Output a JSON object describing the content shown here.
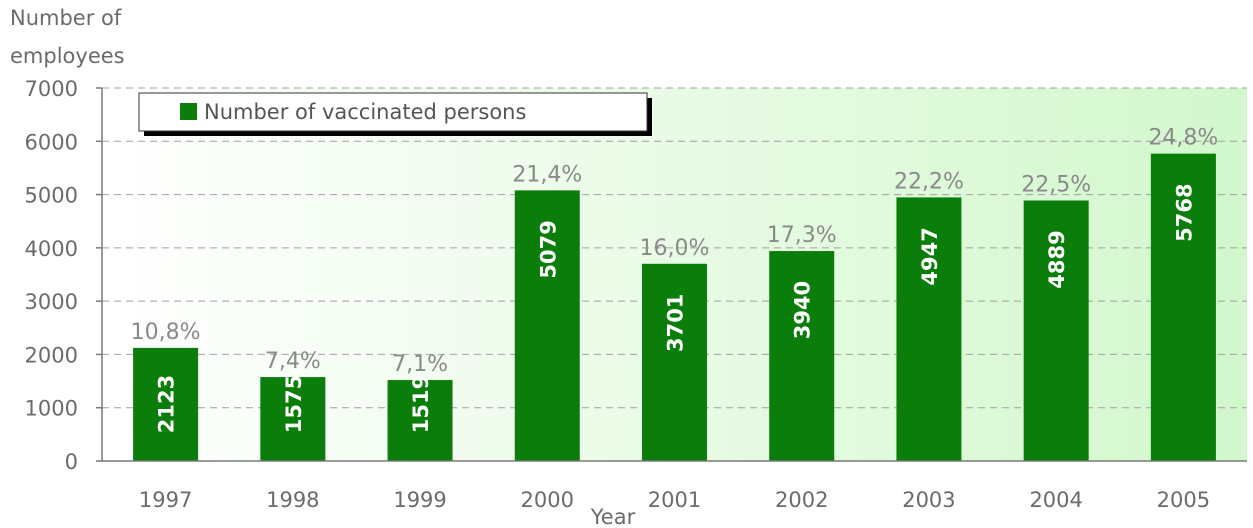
{
  "chart_data": {
    "type": "bar",
    "ylabel_lines": [
      "Number of",
      "employees"
    ],
    "xlabel": "Year",
    "categories": [
      "1997",
      "1998",
      "1999",
      "2000",
      "2001",
      "2002",
      "2003",
      "2004",
      "2005"
    ],
    "series": [
      {
        "name": "Number of vaccinated persons",
        "values": [
          2123,
          1575,
          1519,
          5079,
          3701,
          3940,
          4947,
          4889,
          5768
        ],
        "value_labels": [
          "2123",
          "1575",
          "1519",
          "5079",
          "3701",
          "3940",
          "4947",
          "4889",
          "5768"
        ]
      }
    ],
    "percent_labels": [
      "10,8%",
      "7,4%",
      "7,1%",
      "21,4%",
      "16,0%",
      "17,3%",
      "22,2%",
      "22,5%",
      "24,8%"
    ],
    "yticks": [
      "0",
      "1000",
      "2000",
      "3000",
      "4000",
      "5000",
      "6000",
      "7000"
    ],
    "ylim": [
      0,
      7000
    ],
    "grid": true,
    "legend_position": "top-left",
    "colors": {
      "bar": "#0a7d0a",
      "plot_bg_start": "#ffffff",
      "plot_bg_end": "#d2f7cc",
      "grid": "#a0a0a0"
    }
  }
}
